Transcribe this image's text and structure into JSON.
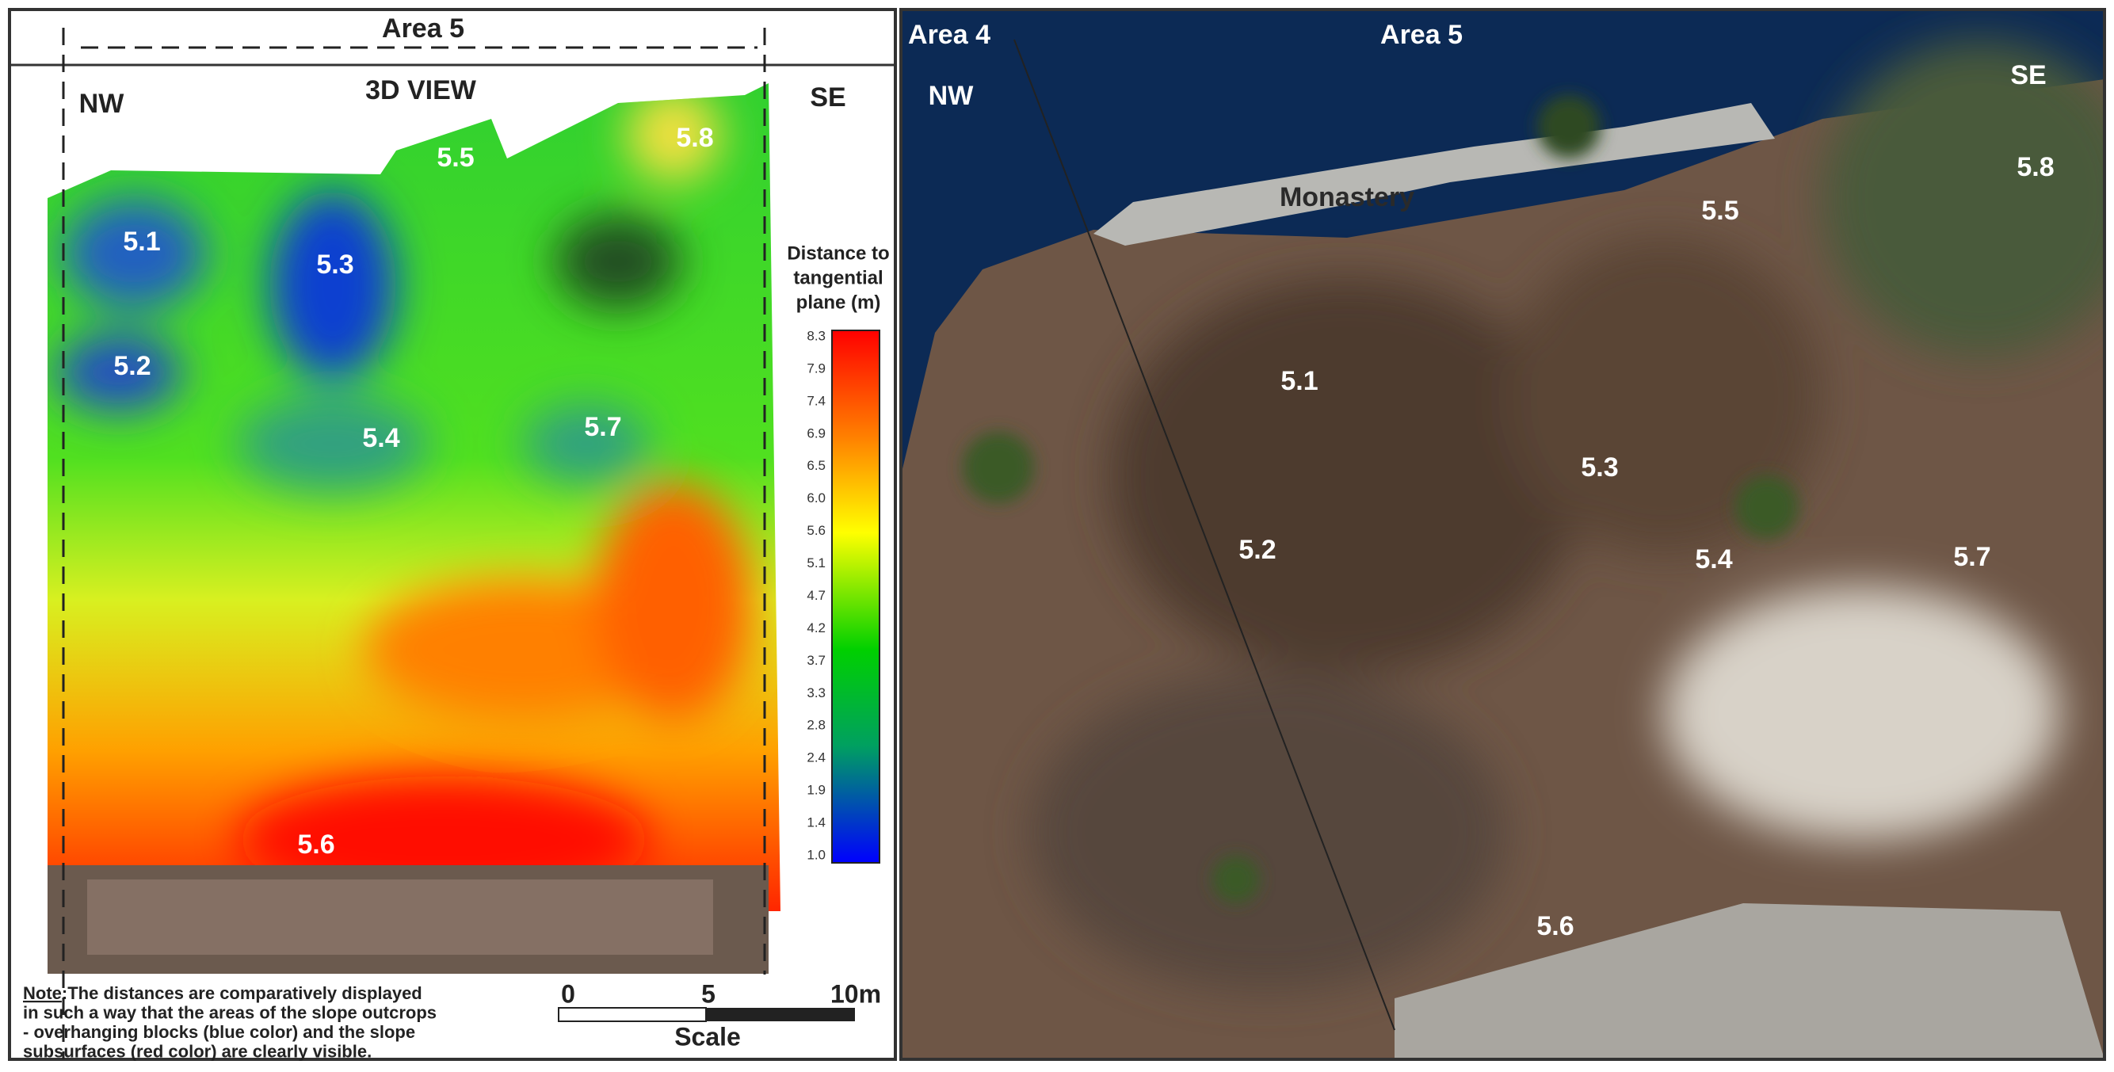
{
  "left_panel": {
    "area_label": "Area 5",
    "view_label": "3D VIEW",
    "nw": "NW",
    "se": "SE",
    "labels": [
      "5.1",
      "5.2",
      "5.3",
      "5.4",
      "5.5",
      "5.6",
      "5.7",
      "5.8"
    ],
    "colorbar": {
      "title": [
        "Distance to",
        "tangential",
        "plane (m)"
      ],
      "ticks": [
        "8.3",
        "7.9",
        "7.4",
        "6.9",
        "6.5",
        "6.0",
        "5.6",
        "5.1",
        "4.7",
        "4.2",
        "3.7",
        "3.3",
        "2.8",
        "2.4",
        "1.9",
        "1.4",
        "1.0"
      ]
    },
    "note": {
      "label": "Note",
      "lines": [
        ":The distances are comparatively displayed",
        "in such a way that the areas of the slope outcrops",
        "- overhanging blocks (blue color) and the slope",
        "subsurfaces (red color) are clearly visible."
      ]
    },
    "scale": {
      "ticks": [
        "0",
        "5",
        "10m"
      ],
      "label": "Scale"
    }
  },
  "right_panel": {
    "area_left": "Area 4",
    "area_right": "Area 5",
    "nw": "NW",
    "se": "SE",
    "monastery": "Monastery",
    "labels": [
      "5.1",
      "5.2",
      "5.3",
      "5.4",
      "5.5",
      "5.6",
      "5.7",
      "5.8"
    ]
  }
}
